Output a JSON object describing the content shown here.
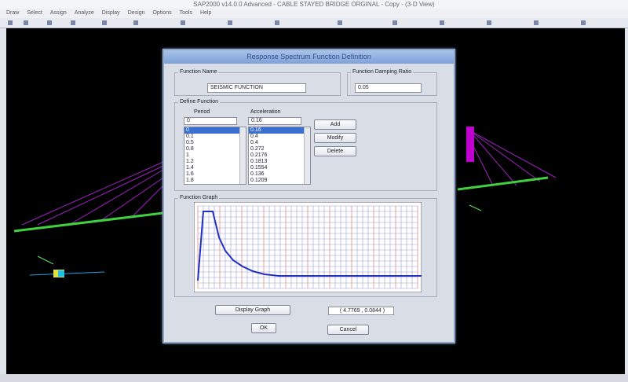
{
  "window_title": "SAP2000 v14.0.0 Advanced  - CABLE STAYED BRIDGE ORGINAL - Copy - (3-D View)",
  "menu": [
    "Draw",
    "Select",
    "Assign",
    "Analyze",
    "Display",
    "Design",
    "Options",
    "Tools",
    "Help"
  ],
  "dialog": {
    "title": "Response Spectrum Function Definition",
    "function_name_label": "Function Name",
    "function_name": "SEISMIC FUNCTION",
    "damping_label": "Function Damping Ratio",
    "damping": "0.05",
    "define_function_label": "Define Function",
    "period_header": "Period",
    "acceleration_header": "Acceleration",
    "period_input": "0",
    "acceleration_input": "0.16",
    "periods": [
      "0",
      "0.1",
      "0.5",
      "0.8",
      "1",
      "1.2",
      "1.4",
      "1.6",
      "1.8"
    ],
    "accelerations": [
      "0.16",
      "0.4",
      "0.4",
      "0.272",
      "0.2176",
      "0.1813",
      "0.1554",
      "0.136",
      "0.1209"
    ],
    "add": "Add",
    "modify": "Modify",
    "delete": "Delete",
    "graph_label": "Function Graph",
    "display_graph": "Display Graph",
    "coordinates": "( 4.7769 ,  0.0844 )",
    "ok": "OK",
    "cancel": "Cancel"
  }
}
